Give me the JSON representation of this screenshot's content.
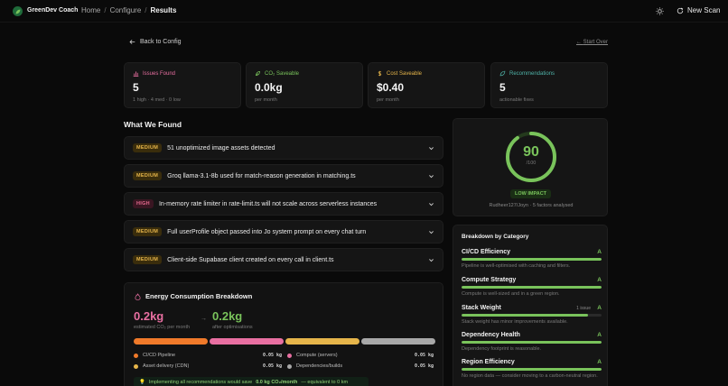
{
  "header": {
    "brand": "GreenDev Coach",
    "breadcrumbs": [
      "Home",
      "Configure",
      "Results"
    ],
    "new_scan_label": "New Scan"
  },
  "nav": {
    "back_label": "Back to Config",
    "start_over_label": "Start Over"
  },
  "stats": [
    {
      "label": "Issues Found",
      "value": "5",
      "sub": "1 high · 4 med · 0 low",
      "color": "#e86fa1"
    },
    {
      "label": "CO₂ Saveable",
      "value": "0.0kg",
      "sub": "per month",
      "color": "#79c35b"
    },
    {
      "label": "Cost Saveable",
      "value": "$0.40",
      "sub": "per month",
      "color": "#e6b54a"
    },
    {
      "label": "Recommendations",
      "value": "5",
      "sub": "actionable fixes",
      "color": "#4fb3a8"
    }
  ],
  "findings_title": "What We Found",
  "findings": [
    {
      "severity": "MEDIUM",
      "text": "51 unoptimized image assets detected"
    },
    {
      "severity": "MEDIUM",
      "text": "Groq llama-3.1-8b used for match-reason generation in matching.ts"
    },
    {
      "severity": "HIGH",
      "text": "In-memory rate limiter in rate-limit.ts will not scale across serverless instances"
    },
    {
      "severity": "MEDIUM",
      "text": "Full userProfile object passed into Jo system prompt on every chat turn"
    },
    {
      "severity": "MEDIUM",
      "text": "Client-side Supabase client created on every call in client.ts"
    }
  ],
  "energy": {
    "title": "Energy Consumption Breakdown",
    "current_value": "0.2kg",
    "current_label": "estimated CO₂ per month",
    "after_value": "0.2kg",
    "after_label": "after optimisations",
    "segments": [
      {
        "name": "CI/CD Pipeline",
        "value": "0.05 kg",
        "color": "#f07a2a"
      },
      {
        "name": "Compute (servers)",
        "value": "0.05 kg",
        "color": "#e86fa1"
      },
      {
        "name": "Asset delivery (CDN)",
        "value": "0.05 kg",
        "color": "#e6b54a"
      },
      {
        "name": "Dependencies/builds",
        "value": "0.05 kg",
        "color": "#a8a8a8"
      }
    ],
    "tip_prefix": "Implementing all recommendations would save",
    "tip_amount": "0.0 kg CO₂/month",
    "tip_suffix": "— equivalent to 0 km"
  },
  "score": {
    "value": "90",
    "out_of": "/100",
    "fraction": 0.9,
    "impact_label": "LOW IMPACT",
    "repo_line": "Rudheer127/Joyn · 5 factors analysed"
  },
  "categories_title": "Breakdown by Category",
  "categories": [
    {
      "name": "CI/CD Efficiency",
      "grade": "A",
      "issue": "",
      "fill": 1.0,
      "desc": "Pipeline is well-optimised with caching and filters."
    },
    {
      "name": "Compute Strategy",
      "grade": "A",
      "issue": "",
      "fill": 1.0,
      "desc": "Compute is well-sized and in a green region."
    },
    {
      "name": "Stack Weight",
      "grade": "A",
      "issue": "1 issue",
      "fill": 0.9,
      "desc": "Stack weight has minor improvements available."
    },
    {
      "name": "Dependency Health",
      "grade": "A",
      "issue": "",
      "fill": 1.0,
      "desc": "Dependency footprint is reasonable."
    },
    {
      "name": "Region Efficiency",
      "grade": "A",
      "issue": "",
      "fill": 1.0,
      "desc": "No region data — consider moving to a carbon-neutral region."
    }
  ]
}
